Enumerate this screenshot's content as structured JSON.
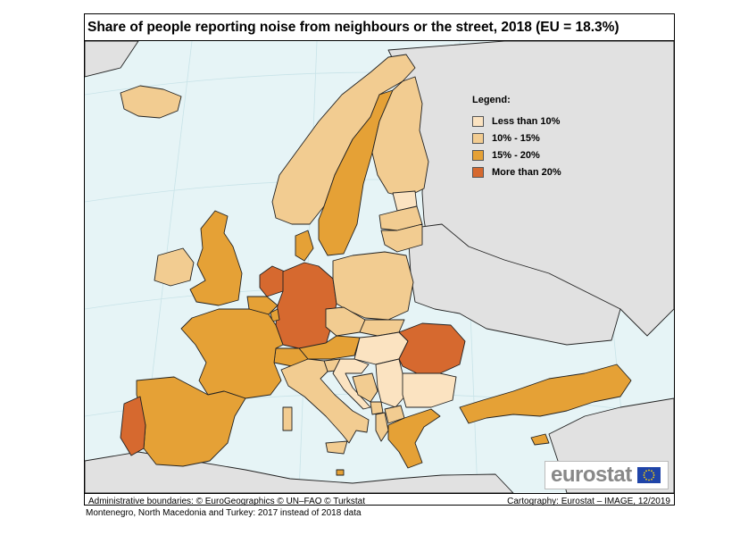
{
  "title": "Share of people reporting noise from neighbours or the street, 2018 (EU = 18.3%)",
  "legend": {
    "title": "Legend:",
    "items": [
      {
        "label": "Less than 10%",
        "color": "#fbe3c1"
      },
      {
        "label": "10% - 15%",
        "color": "#f2cc91"
      },
      {
        "label": "15% - 20%",
        "color": "#e5a136"
      },
      {
        "label": "More than 20%",
        "color": "#d6692f"
      }
    ]
  },
  "colors": {
    "sea": "#e6f4f6",
    "non_eu_land": "#e1e1e1",
    "border": "#222222"
  },
  "footer": {
    "credits_left": "Administrative boundaries: © EuroGeographics © UN–FAO © Turkstat",
    "credits_right": "Cartography: Eurostat – IMAGE, 12/2019"
  },
  "note": "Montenegro, North Macedonia and Turkey: 2017 instead of 2018 data",
  "logo": {
    "text": "eurostat"
  },
  "classes": {
    "less_than_10": [
      "Croatia",
      "Serbia",
      "Hungary",
      "Bulgaria",
      "Estonia"
    ],
    "10_to_15": [
      "Ireland",
      "Norway",
      "Finland",
      "Iceland",
      "Poland",
      "Czechia",
      "Slovakia",
      "Italy",
      "Lithuania",
      "Latvia",
      "Slovenia",
      "Montenegro",
      "Bosnia and Herzegovina",
      "North Macedonia",
      "Albania"
    ],
    "15_to_20": [
      "United Kingdom",
      "Sweden",
      "Denmark",
      "Spain",
      "France",
      "Austria",
      "Switzerland",
      "Belgium",
      "Greece",
      "Cyprus",
      "Malta",
      "Turkey",
      "Luxembourg"
    ],
    "more_than_20": [
      "Germany",
      "Netherlands",
      "Romania",
      "Portugal"
    ]
  }
}
